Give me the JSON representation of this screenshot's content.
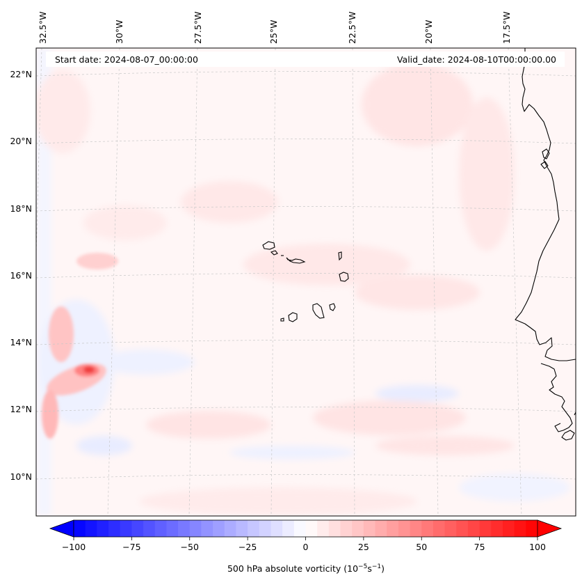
{
  "map": {
    "start_label": "Start date: 2024-08-07_00:00:00",
    "valid_label": "Valid_date: 2024-08-10T00:00:00.00",
    "lon_labels": [
      "32.5°W",
      "30°W",
      "27.5°W",
      "25°W",
      "22.5°W",
      "20°W",
      "17.5°W"
    ],
    "lat_labels": [
      "22°N",
      "20°N",
      "18°N",
      "16°N",
      "14°N",
      "12°N",
      "10°N"
    ]
  },
  "colorbar": {
    "label_prefix": "500 hPa absolute vorticity (10",
    "label_exp1": "−5",
    "label_mid": "s",
    "label_exp2": "−1",
    "label_suffix": ")",
    "min": -100,
    "max": 100,
    "tick_values": [
      -100,
      -75,
      -50,
      -25,
      0,
      25,
      50,
      75,
      100
    ],
    "tick_labels": [
      "−100",
      "−75",
      "−50",
      "−25",
      "0",
      "25",
      "50",
      "75",
      "100"
    ],
    "neg_color": "#0000ff",
    "pos_color": "#ff0000"
  },
  "colors": {
    "background_field": "#fff6f6",
    "coastline": "#000000",
    "gridline": "#c8c8c8"
  }
}
